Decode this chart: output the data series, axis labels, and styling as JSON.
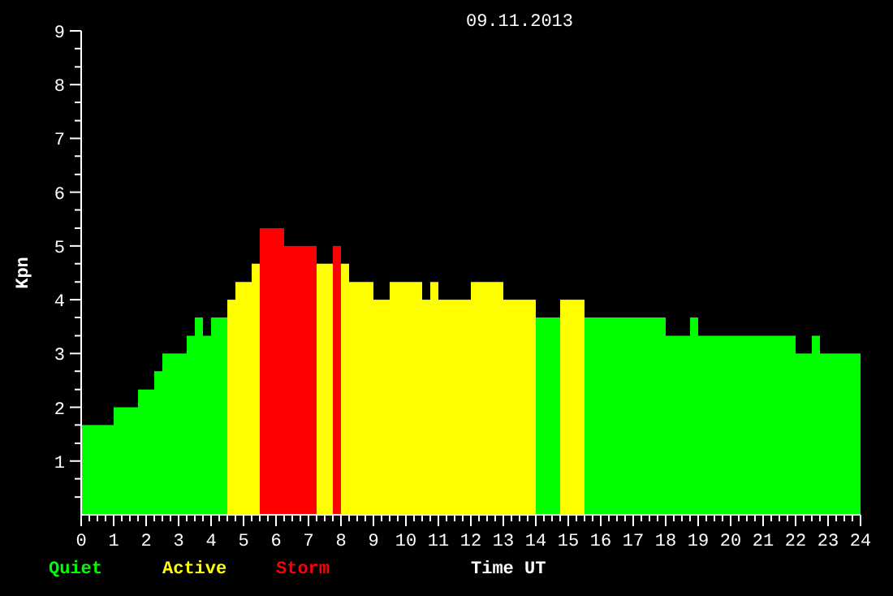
{
  "chart_data": {
    "type": "histogram",
    "title": "09.11.2013",
    "xlabel": "Time UT",
    "ylabel": "Kpn",
    "bins": [
      0,
      1,
      1.75,
      2.25,
      2.5,
      3.25,
      3.5,
      3.75,
      4,
      4.5,
      4.75,
      5.25,
      5.5,
      6.25,
      7.25,
      7.75,
      8,
      8.25,
      9,
      9.5,
      10.5,
      10.75,
      11,
      12,
      13,
      14,
      14.75,
      15.5,
      18,
      18.75,
      19,
      22,
      22.5,
      22.75,
      24
    ],
    "series": [
      {
        "name": "Quiet",
        "color": "#00ff00",
        "values": [
          1.67,
          2,
          2.33,
          2.67,
          3,
          3.33,
          3.67,
          3.33,
          3.67,
          null,
          null,
          null,
          null,
          null,
          null,
          null,
          null,
          null,
          null,
          null,
          null,
          null,
          null,
          null,
          null,
          3.67,
          null,
          3.67,
          3.33,
          3.67,
          3.33,
          3,
          3.33,
          3
        ]
      },
      {
        "name": "Active",
        "color": "#ffff00",
        "values": [
          null,
          null,
          null,
          null,
          null,
          null,
          null,
          null,
          null,
          4,
          4.33,
          4.67,
          null,
          null,
          4.67,
          null,
          4.67,
          4.33,
          4,
          4.33,
          4,
          4.33,
          4,
          4.33,
          4,
          null,
          4,
          null,
          null,
          null,
          null,
          null,
          null,
          null
        ]
      },
      {
        "name": "Storm",
        "color": "#ff0000",
        "values": [
          null,
          null,
          null,
          null,
          null,
          null,
          null,
          null,
          null,
          null,
          null,
          null,
          5.33,
          5,
          null,
          5,
          null,
          null,
          null,
          null,
          null,
          null,
          null,
          null,
          null,
          null,
          null,
          null,
          null,
          null,
          null,
          null,
          null,
          null
        ]
      }
    ],
    "xlim": [
      0,
      24
    ],
    "ylim": [
      0,
      9
    ],
    "xticks": [
      0,
      1,
      2,
      3,
      4,
      5,
      6,
      7,
      8,
      9,
      10,
      11,
      12,
      13,
      14,
      15,
      16,
      17,
      18,
      19,
      20,
      21,
      22,
      23,
      24,
      {
        "value": 0.25,
        "label": null
      },
      {
        "value": 0.5,
        "label": null
      },
      {
        "value": 0.75,
        "label": null
      },
      {
        "value": 1.25,
        "label": null
      },
      {
        "value": 1.5,
        "label": null
      },
      {
        "value": 1.75,
        "label": null
      },
      {
        "value": 2.25,
        "label": null
      },
      {
        "value": 2.5,
        "label": null
      },
      {
        "value": 2.75,
        "label": null
      },
      {
        "value": 3.25,
        "label": null
      },
      {
        "value": 3.5,
        "label": null
      },
      {
        "value": 3.75,
        "label": null
      },
      {
        "value": 4.25,
        "label": null
      },
      {
        "value": 4.5,
        "label": null
      },
      {
        "value": 4.75,
        "label": null
      },
      {
        "value": 5.25,
        "label": null
      },
      {
        "value": 5.5,
        "label": null
      },
      {
        "value": 5.75,
        "label": null
      },
      {
        "value": 6.25,
        "label": null
      },
      {
        "value": 6.5,
        "label": null
      },
      {
        "value": 6.75,
        "label": null
      },
      {
        "value": 7.25,
        "label": null
      },
      {
        "value": 7.5,
        "label": null
      },
      {
        "value": 7.75,
        "label": null
      },
      {
        "value": 8.25,
        "label": null
      },
      {
        "value": 8.5,
        "label": null
      },
      {
        "value": 8.75,
        "label": null
      },
      {
        "value": 9.25,
        "label": null
      },
      {
        "value": 9.5,
        "label": null
      },
      {
        "value": 9.75,
        "label": null
      },
      {
        "value": 10.25,
        "label": null
      },
      {
        "value": 10.5,
        "label": null
      },
      {
        "value": 10.75,
        "label": null
      },
      {
        "value": 11.25,
        "label": null
      },
      {
        "value": 11.5,
        "label": null
      },
      {
        "value": 11.75,
        "label": null
      },
      {
        "value": 12.25,
        "label": null
      },
      {
        "value": 12.5,
        "label": null
      },
      {
        "value": 12.75,
        "label": null
      },
      {
        "value": 13.25,
        "label": null
      },
      {
        "value": 13.5,
        "label": null
      },
      {
        "value": 13.75,
        "label": null
      },
      {
        "value": 14.25,
        "label": null
      },
      {
        "value": 14.5,
        "label": null
      },
      {
        "value": 14.75,
        "label": null
      },
      {
        "value": 15.25,
        "label": null
      },
      {
        "value": 15.5,
        "label": null
      },
      {
        "value": 15.75,
        "label": null
      },
      {
        "value": 16.25,
        "label": null
      },
      {
        "value": 16.5,
        "label": null
      },
      {
        "value": 16.75,
        "label": null
      },
      {
        "value": 17.25,
        "label": null
      },
      {
        "value": 17.5,
        "label": null
      },
      {
        "value": 17.75,
        "label": null
      },
      {
        "value": 18.25,
        "label": null
      },
      {
        "value": 18.5,
        "label": null
      },
      {
        "value": 18.75,
        "label": null
      },
      {
        "value": 19.25,
        "label": null
      },
      {
        "value": 19.5,
        "label": null
      },
      {
        "value": 19.75,
        "label": null
      },
      {
        "value": 20.25,
        "label": null
      },
      {
        "value": 20.5,
        "label": null
      },
      {
        "value": 20.75,
        "label": null
      },
      {
        "value": 21.25,
        "label": null
      },
      {
        "value": 21.5,
        "label": null
      },
      {
        "value": 21.75,
        "label": null
      },
      {
        "value": 22.25,
        "label": null
      },
      {
        "value": 22.5,
        "label": null
      },
      {
        "value": 22.75,
        "label": null
      },
      {
        "value": 23.25,
        "label": null
      },
      {
        "value": 23.5,
        "label": null
      },
      {
        "value": 23.75,
        "label": null
      }
    ],
    "yticks": [
      1,
      2,
      3,
      4,
      5,
      6,
      7,
      8,
      9,
      {
        "value": 0.33,
        "label": null
      },
      {
        "value": 0.67,
        "label": null
      },
      {
        "value": 1.33,
        "label": null
      },
      {
        "value": 1.67,
        "label": null
      },
      {
        "value": 2.33,
        "label": null
      },
      {
        "value": 2.67,
        "label": null
      },
      {
        "value": 3.33,
        "label": null
      },
      {
        "value": 3.67,
        "label": null
      },
      {
        "value": 4.33,
        "label": null
      },
      {
        "value": 4.67,
        "label": null
      },
      {
        "value": 5.33,
        "label": null
      },
      {
        "value": 5.67,
        "label": null
      },
      {
        "value": 6.33,
        "label": null
      },
      {
        "value": 6.67,
        "label": null
      },
      {
        "value": 7.33,
        "label": null
      },
      {
        "value": 7.67,
        "label": null
      },
      {
        "value": 8.33,
        "label": null
      },
      {
        "value": 8.67,
        "label": null
      }
    ],
    "legend": "bottom left",
    "grid": false
  }
}
